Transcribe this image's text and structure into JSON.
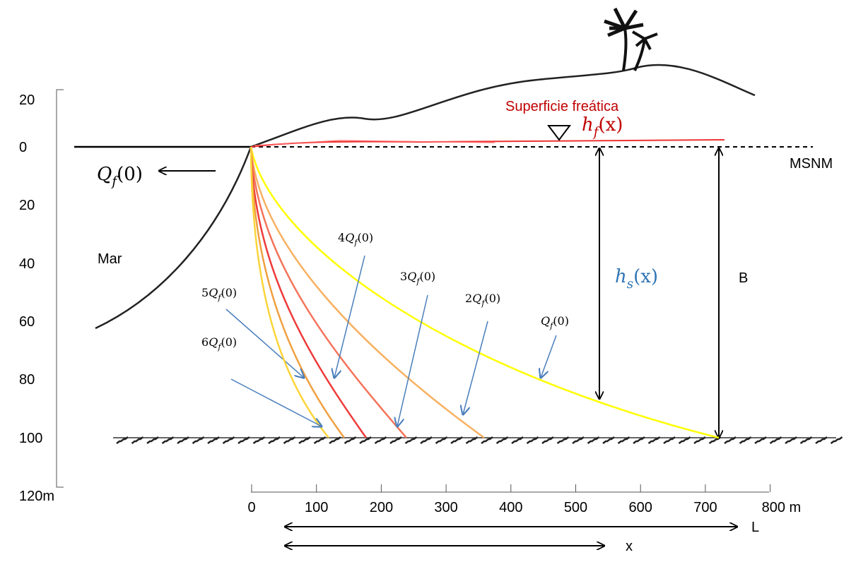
{
  "y_axis": {
    "labels": [
      "20",
      "0",
      "20",
      "40",
      "60",
      "80",
      "100",
      "120m"
    ]
  },
  "x_axis": {
    "labels": [
      "0",
      "100",
      "200",
      "300",
      "400",
      "500",
      "600",
      "700",
      "800 m"
    ]
  },
  "labels": {
    "msnm": "MSNM",
    "sea": "Mar",
    "water_table": "Superficie freática",
    "b": "B",
    "l": "L",
    "x": "x"
  },
  "math": {
    "hf": {
      "main": "h",
      "sub": "f",
      "arg": "(x)"
    },
    "hs": {
      "main": "h",
      "sub": "s",
      "arg": "(x)"
    },
    "outflow": {
      "main": "Q",
      "sub": "f",
      "arg": "(0)"
    }
  },
  "curves": [
    {
      "main": "Q",
      "sub": "f",
      "arg": "(0)"
    },
    {
      "coef": "2",
      "main": "Q",
      "sub": "f",
      "arg": "(0)"
    },
    {
      "coef": "3",
      "main": "Q",
      "sub": "f",
      "arg": "(0)"
    },
    {
      "coef": "4",
      "main": "Q",
      "sub": "f",
      "arg": "(0)"
    },
    {
      "coef": "5",
      "main": "Q",
      "sub": "f",
      "arg": "(0)"
    },
    {
      "coef": "6",
      "main": "Q",
      "sub": "f",
      "arg": "(0)"
    }
  ]
}
